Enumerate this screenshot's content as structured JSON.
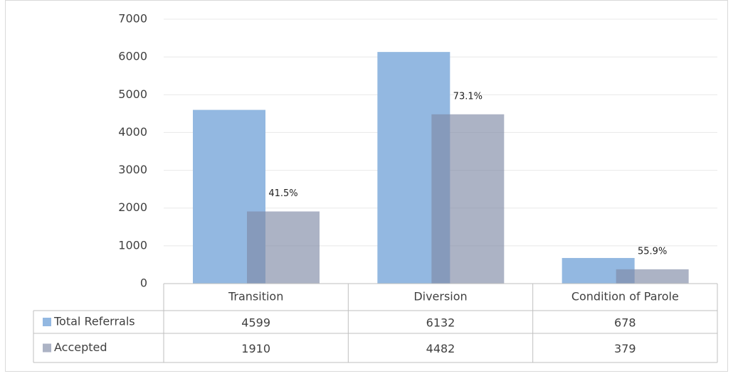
{
  "chart_data": {
    "type": "bar",
    "categories": [
      "Transition",
      "Diversion",
      "Condition of Parole"
    ],
    "series": [
      {
        "name": "Total Referrals",
        "color": "#93b8e1",
        "values": [
          4599,
          6132,
          678
        ]
      },
      {
        "name": "Accepted",
        "color": "#7f8aa6",
        "values": [
          1910,
          4482,
          379
        ]
      }
    ],
    "annotations": [
      "41.5%",
      "73.1%",
      "55.9%"
    ],
    "ylim": [
      0,
      7000
    ],
    "yticks": [
      0,
      1000,
      2000,
      3000,
      4000,
      5000,
      6000,
      7000
    ],
    "grid": true,
    "data_table": true
  }
}
